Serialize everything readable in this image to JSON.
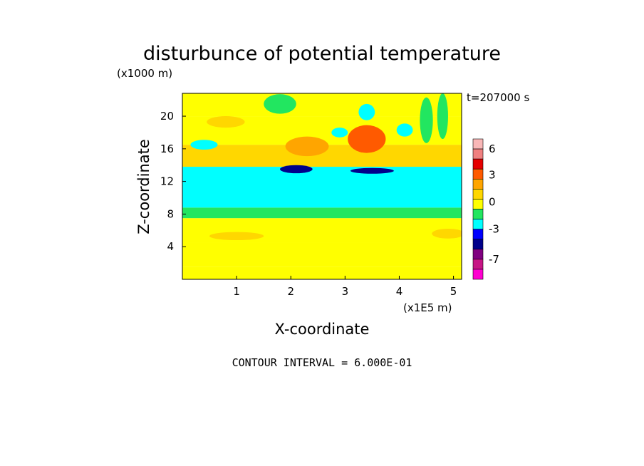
{
  "chart_data": {
    "type": "heatmap",
    "title": "disturbunce of potential temperature",
    "y_multiplier_label": "(x1000 m)",
    "x_multiplier_label": "(x1E5 m)",
    "xlabel": "X-coordinate",
    "ylabel": "Z-coordinate",
    "time_label": "t=207000 s",
    "footer": "CONTOUR INTERVAL = 6.000E-01",
    "xlim": [
      0,
      5.15
    ],
    "ylim": [
      0,
      22.8
    ],
    "x_ticks": [
      "1",
      "2",
      "3",
      "4",
      "5"
    ],
    "y_ticks": [
      "4",
      "8",
      "12",
      "16",
      "20"
    ],
    "colorbar": {
      "levels": [
        {
          "color": "#f9b7b7"
        },
        {
          "color": "#f08080"
        },
        {
          "color": "#e60000"
        },
        {
          "color": "#ff5a00"
        },
        {
          "color": "#ffa500"
        },
        {
          "color": "#ffd700"
        },
        {
          "color": "#ffff00"
        },
        {
          "color": "#22e660"
        },
        {
          "color": "#00ffff"
        },
        {
          "color": "#0000ff"
        },
        {
          "color": "#00008b"
        },
        {
          "color": "#800080"
        },
        {
          "color": "#c71585"
        },
        {
          "color": "#ff00d0"
        }
      ],
      "tick_labels": [
        "6",
        "3",
        "0",
        "-3",
        "-7"
      ]
    },
    "bands": [
      {
        "z0": 0.0,
        "z1": 1.5,
        "value": 0.0
      },
      {
        "z0": 1.5,
        "z1": 4.5,
        "value": 0.3
      },
      {
        "z0": 4.5,
        "z1": 7.5,
        "value": 0.2
      },
      {
        "z0": 7.5,
        "z1": 8.8,
        "value": -0.3
      },
      {
        "z0": 8.8,
        "z1": 13.8,
        "value": -1.0
      },
      {
        "z0": 13.8,
        "z1": 16.5,
        "value": 0.6
      },
      {
        "z0": 16.5,
        "z1": 20.0,
        "value": 0.2
      },
      {
        "z0": 20.0,
        "z1": 22.8,
        "value": 0.1
      }
    ],
    "features": [
      {
        "x": 3.4,
        "z": 17.5,
        "value": 3.2,
        "rx": 0.15,
        "rz": 0.9
      },
      {
        "x": 3.4,
        "z": 17.2,
        "value": 1.8,
        "rx": 0.35,
        "rz": 1.7
      },
      {
        "x": 2.3,
        "z": 16.3,
        "value": 1.2,
        "rx": 0.4,
        "rz": 1.2
      },
      {
        "x": 0.8,
        "z": 19.3,
        "value": 0.9,
        "rx": 0.35,
        "rz": 0.7
      },
      {
        "x": 2.1,
        "z": 13.5,
        "value": -2.4,
        "rx": 0.3,
        "rz": 0.5
      },
      {
        "x": 3.5,
        "z": 13.3,
        "value": -2.1,
        "rx": 0.4,
        "rz": 0.35
      },
      {
        "x": 3.4,
        "z": 20.5,
        "value": -1.0,
        "rx": 0.15,
        "rz": 1.0
      },
      {
        "x": 2.9,
        "z": 18.0,
        "value": -1.0,
        "rx": 0.15,
        "rz": 0.6
      },
      {
        "x": 4.1,
        "z": 18.3,
        "value": -1.0,
        "rx": 0.15,
        "rz": 0.8
      },
      {
        "x": 0.4,
        "z": 16.5,
        "value": -0.8,
        "rx": 0.25,
        "rz": 0.6
      },
      {
        "x": 1.0,
        "z": 5.3,
        "value": 0.8,
        "rx": 0.5,
        "rz": 0.5
      },
      {
        "x": 4.9,
        "z": 5.6,
        "value": 0.7,
        "rx": 0.3,
        "rz": 0.6
      },
      {
        "x": 4.5,
        "z": 19.5,
        "value": -0.4,
        "rx": 0.12,
        "rz": 2.8
      },
      {
        "x": 4.8,
        "z": 20.0,
        "value": -0.4,
        "rx": 0.1,
        "rz": 2.8
      },
      {
        "x": 1.8,
        "z": 21.5,
        "value": -0.4,
        "rx": 0.3,
        "rz": 1.2
      }
    ]
  }
}
